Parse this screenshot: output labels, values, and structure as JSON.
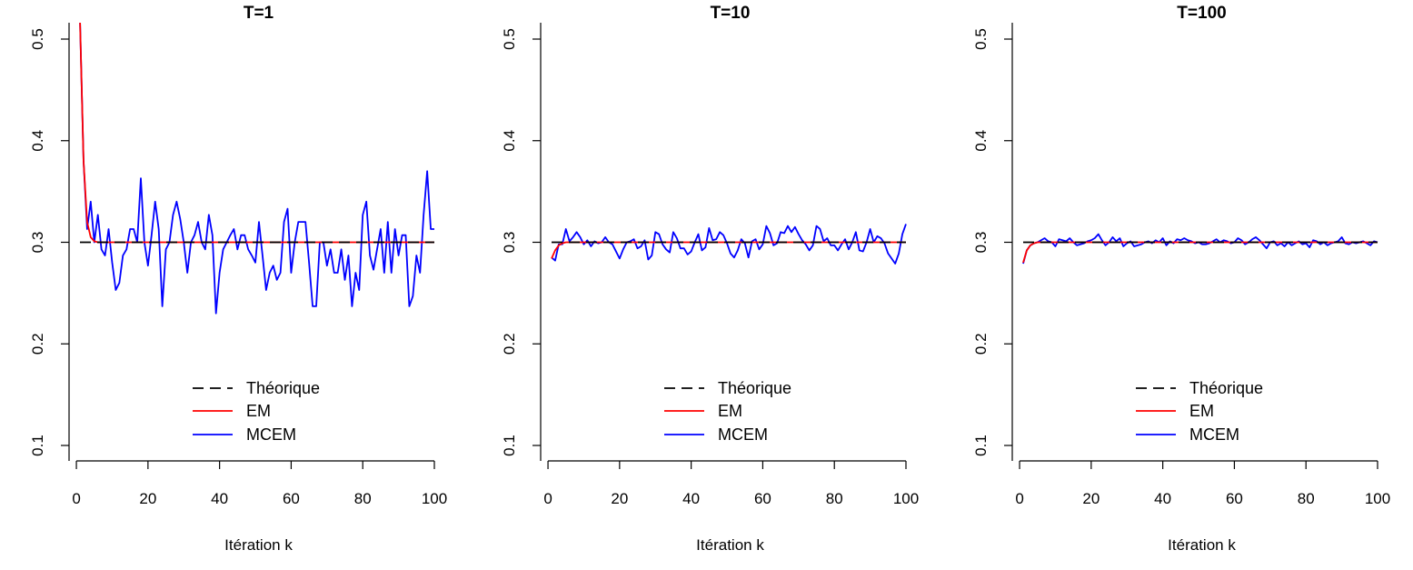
{
  "chart_data": [
    {
      "type": "line",
      "title": "T=1",
      "xlabel": "Itération k",
      "ylabel": "",
      "xlim": [
        1,
        100
      ],
      "ylim": [
        0.1,
        0.5
      ],
      "xticks": [
        0,
        20,
        40,
        60,
        80,
        100
      ],
      "yticks": [
        0.1,
        0.2,
        0.3,
        0.4,
        0.5
      ],
      "grid": false,
      "legend_position": "bottom-center",
      "series": [
        {
          "name": "Théorique",
          "color": "#000000",
          "dash": "dashed",
          "x": [
            1,
            100
          ],
          "y": [
            0.3,
            0.3
          ]
        },
        {
          "name": "EM",
          "color": "#ff0000",
          "dash": "solid",
          "x": [
            1,
            2,
            3,
            4,
            5,
            6,
            8,
            10,
            15,
            20,
            30,
            50,
            100
          ],
          "y": [
            0.52,
            0.38,
            0.32,
            0.305,
            0.301,
            0.3,
            0.3,
            0.3,
            0.3,
            0.3,
            0.3,
            0.3,
            0.3
          ]
        },
        {
          "name": "MCEM",
          "color": "#0000ff",
          "dash": "solid",
          "x": [
            1,
            2,
            3,
            4,
            5,
            6,
            7,
            8,
            9,
            10,
            11,
            12,
            13,
            14,
            15,
            16,
            17,
            18,
            19,
            20,
            21,
            22,
            23,
            24,
            25,
            26,
            27,
            28,
            29,
            30,
            31,
            32,
            33,
            34,
            35,
            36,
            37,
            38,
            39,
            40,
            41,
            42,
            43,
            44,
            45,
            46,
            47,
            48,
            49,
            50,
            51,
            52,
            53,
            54,
            55,
            56,
            57,
            58,
            59,
            60,
            61,
            62,
            63,
            64,
            65,
            66,
            67,
            68,
            69,
            70,
            71,
            72,
            73,
            74,
            75,
            76,
            77,
            78,
            79,
            80,
            81,
            82,
            83,
            84,
            85,
            86,
            87,
            88,
            89,
            90,
            91,
            92,
            93,
            94,
            95,
            96,
            97,
            98,
            99,
            100
          ],
          "y": [
            0.52,
            0.38,
            0.313,
            0.34,
            0.3,
            0.327,
            0.293,
            0.287,
            0.313,
            0.28,
            0.253,
            0.26,
            0.287,
            0.293,
            0.313,
            0.313,
            0.3,
            0.363,
            0.3,
            0.277,
            0.307,
            0.34,
            0.313,
            0.237,
            0.293,
            0.3,
            0.327,
            0.34,
            0.323,
            0.3,
            0.27,
            0.3,
            0.307,
            0.32,
            0.3,
            0.293,
            0.327,
            0.307,
            0.23,
            0.27,
            0.293,
            0.3,
            0.307,
            0.313,
            0.293,
            0.307,
            0.307,
            0.293,
            0.287,
            0.28,
            0.32,
            0.287,
            0.253,
            0.27,
            0.277,
            0.263,
            0.27,
            0.32,
            0.333,
            0.27,
            0.3,
            0.32,
            0.32,
            0.32,
            0.28,
            0.237,
            0.237,
            0.3,
            0.3,
            0.277,
            0.293,
            0.27,
            0.27,
            0.293,
            0.263,
            0.287,
            0.237,
            0.27,
            0.253,
            0.327,
            0.34,
            0.287,
            0.273,
            0.293,
            0.313,
            0.27,
            0.32,
            0.27,
            0.313,
            0.287,
            0.307,
            0.307,
            0.237,
            0.247,
            0.287,
            0.27,
            0.327,
            0.37,
            0.313,
            0.313
          ]
        }
      ]
    },
    {
      "type": "line",
      "title": "T=10",
      "xlabel": "Itération k",
      "ylabel": "",
      "xlim": [
        1,
        100
      ],
      "ylim": [
        0.1,
        0.5
      ],
      "xticks": [
        0,
        20,
        40,
        60,
        80,
        100
      ],
      "yticks": [
        0.1,
        0.2,
        0.3,
        0.4,
        0.5
      ],
      "grid": false,
      "legend_position": "bottom-center",
      "series": [
        {
          "name": "Théorique",
          "color": "#000000",
          "dash": "dashed",
          "x": [
            1,
            100
          ],
          "y": [
            0.3,
            0.3
          ]
        },
        {
          "name": "EM",
          "color": "#ff0000",
          "dash": "solid",
          "x": [
            1,
            2,
            3,
            4,
            5,
            6,
            8,
            10,
            20,
            50,
            100
          ],
          "y": [
            0.284,
            0.292,
            0.297,
            0.299,
            0.3,
            0.3,
            0.3,
            0.3,
            0.3,
            0.3,
            0.3
          ]
        },
        {
          "name": "MCEM",
          "color": "#0000ff",
          "dash": "solid",
          "x": [
            1,
            2,
            3,
            4,
            5,
            6,
            7,
            8,
            9,
            10,
            11,
            12,
            13,
            14,
            15,
            16,
            17,
            18,
            19,
            20,
            21,
            22,
            23,
            24,
            25,
            26,
            27,
            28,
            29,
            30,
            31,
            32,
            33,
            34,
            35,
            36,
            37,
            38,
            39,
            40,
            41,
            42,
            43,
            44,
            45,
            46,
            47,
            48,
            49,
            50,
            51,
            52,
            53,
            54,
            55,
            56,
            57,
            58,
            59,
            60,
            61,
            62,
            63,
            64,
            65,
            66,
            67,
            68,
            69,
            70,
            71,
            72,
            73,
            74,
            75,
            76,
            77,
            78,
            79,
            80,
            81,
            82,
            83,
            84,
            85,
            86,
            87,
            88,
            89,
            90,
            91,
            92,
            93,
            94,
            95,
            96,
            97,
            98,
            99,
            100
          ],
          "y": [
            0.285,
            0.282,
            0.298,
            0.298,
            0.313,
            0.301,
            0.305,
            0.31,
            0.305,
            0.298,
            0.302,
            0.296,
            0.301,
            0.299,
            0.3,
            0.305,
            0.3,
            0.298,
            0.291,
            0.284,
            0.293,
            0.3,
            0.301,
            0.303,
            0.294,
            0.296,
            0.302,
            0.283,
            0.287,
            0.31,
            0.308,
            0.298,
            0.293,
            0.29,
            0.31,
            0.304,
            0.294,
            0.294,
            0.288,
            0.291,
            0.3,
            0.308,
            0.292,
            0.295,
            0.314,
            0.302,
            0.303,
            0.31,
            0.307,
            0.299,
            0.289,
            0.285,
            0.292,
            0.303,
            0.299,
            0.285,
            0.301,
            0.303,
            0.293,
            0.298,
            0.316,
            0.309,
            0.297,
            0.299,
            0.31,
            0.309,
            0.316,
            0.31,
            0.315,
            0.308,
            0.302,
            0.298,
            0.292,
            0.297,
            0.316,
            0.313,
            0.301,
            0.304,
            0.297,
            0.297,
            0.292,
            0.298,
            0.303,
            0.293,
            0.3,
            0.31,
            0.292,
            0.291,
            0.3,
            0.313,
            0.3,
            0.306,
            0.304,
            0.299,
            0.289,
            0.284,
            0.279,
            0.289,
            0.308,
            0.318
          ]
        }
      ]
    },
    {
      "type": "line",
      "title": "T=100",
      "xlabel": "Itération k",
      "ylabel": "",
      "xlim": [
        1,
        100
      ],
      "ylim": [
        0.1,
        0.5
      ],
      "xticks": [
        0,
        20,
        40,
        60,
        80,
        100
      ],
      "yticks": [
        0.1,
        0.2,
        0.3,
        0.4,
        0.5
      ],
      "grid": false,
      "legend_position": "bottom-center",
      "series": [
        {
          "name": "Théorique",
          "color": "#000000",
          "dash": "dashed",
          "x": [
            1,
            100
          ],
          "y": [
            0.3,
            0.3
          ]
        },
        {
          "name": "EM",
          "color": "#ff0000",
          "dash": "solid",
          "x": [
            1,
            2,
            3,
            4,
            5,
            6,
            8,
            10,
            20,
            50,
            100
          ],
          "y": [
            0.28,
            0.292,
            0.297,
            0.299,
            0.3,
            0.3,
            0.3,
            0.3,
            0.3,
            0.3,
            0.3
          ]
        },
        {
          "name": "MCEM",
          "color": "#0000ff",
          "dash": "solid",
          "x": [
            1,
            2,
            3,
            4,
            5,
            6,
            7,
            8,
            9,
            10,
            11,
            12,
            13,
            14,
            15,
            16,
            17,
            18,
            19,
            20,
            21,
            22,
            23,
            24,
            25,
            26,
            27,
            28,
            29,
            30,
            31,
            32,
            33,
            34,
            35,
            36,
            37,
            38,
            39,
            40,
            41,
            42,
            43,
            44,
            45,
            46,
            47,
            48,
            49,
            50,
            51,
            52,
            53,
            54,
            55,
            56,
            57,
            58,
            59,
            60,
            61,
            62,
            63,
            64,
            65,
            66,
            67,
            68,
            69,
            70,
            71,
            72,
            73,
            74,
            75,
            76,
            77,
            78,
            79,
            80,
            81,
            82,
            83,
            84,
            85,
            86,
            87,
            88,
            89,
            90,
            91,
            92,
            93,
            94,
            95,
            96,
            97,
            98,
            99,
            100
          ],
          "y": [
            0.279,
            0.292,
            0.297,
            0.299,
            0.3,
            0.302,
            0.304,
            0.301,
            0.3,
            0.296,
            0.303,
            0.302,
            0.301,
            0.304,
            0.3,
            0.297,
            0.298,
            0.299,
            0.301,
            0.302,
            0.304,
            0.308,
            0.302,
            0.297,
            0.3,
            0.305,
            0.301,
            0.304,
            0.296,
            0.299,
            0.301,
            0.296,
            0.297,
            0.298,
            0.3,
            0.301,
            0.299,
            0.302,
            0.3,
            0.304,
            0.297,
            0.301,
            0.299,
            0.303,
            0.302,
            0.304,
            0.302,
            0.301,
            0.299,
            0.3,
            0.298,
            0.298,
            0.299,
            0.301,
            0.303,
            0.3,
            0.302,
            0.301,
            0.299,
            0.3,
            0.304,
            0.302,
            0.298,
            0.3,
            0.303,
            0.305,
            0.302,
            0.298,
            0.294,
            0.3,
            0.301,
            0.297,
            0.299,
            0.296,
            0.3,
            0.297,
            0.299,
            0.301,
            0.298,
            0.299,
            0.295,
            0.302,
            0.301,
            0.298,
            0.3,
            0.297,
            0.299,
            0.3,
            0.301,
            0.305,
            0.299,
            0.298,
            0.3,
            0.299,
            0.3,
            0.301,
            0.299,
            0.297,
            0.301,
            0.3
          ]
        }
      ]
    }
  ]
}
